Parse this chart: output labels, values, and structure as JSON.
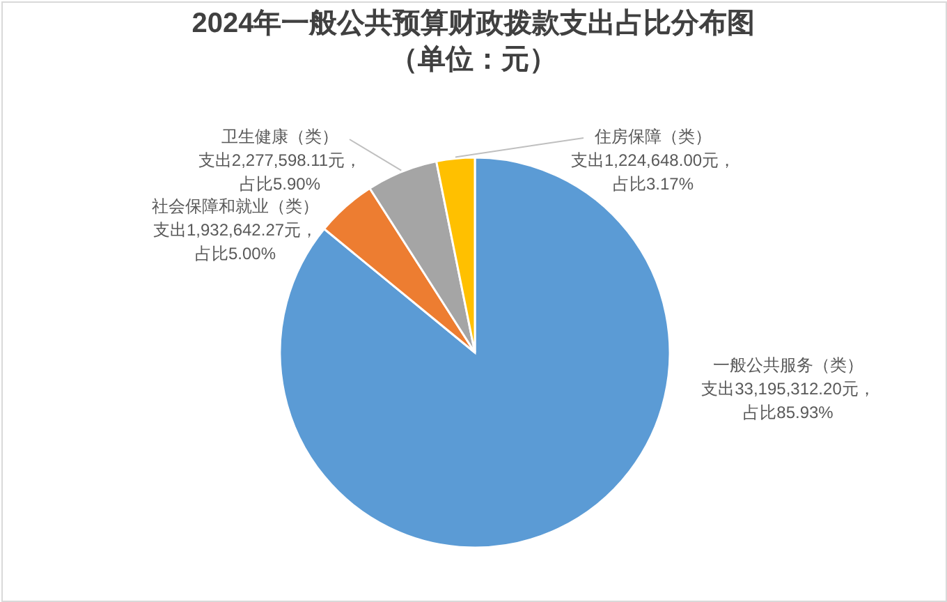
{
  "chart_data": {
    "type": "pie",
    "title": "2024年一般公共预算财政拨款支出占比分布图",
    "subtitle": "（单位：元）",
    "categories": [
      "一般公共服务（类）",
      "社会保障和就业（类）",
      "卫生健康（类）",
      "住房保障（类）"
    ],
    "values": [
      33195312.2,
      1932642.27,
      2277598.11,
      1224648.0
    ],
    "colors": [
      "#5b9bd5",
      "#ed7d31",
      "#a5a5a5",
      "#ffc000"
    ],
    "value_labels": [
      "支出33,195,312.20元，占比85.93%",
      "支出1,932,642.27元，占比5.00%",
      "支出2,277,598.11元，占比5.90%",
      "支出1,224,648.00元，占比3.17%"
    ]
  }
}
